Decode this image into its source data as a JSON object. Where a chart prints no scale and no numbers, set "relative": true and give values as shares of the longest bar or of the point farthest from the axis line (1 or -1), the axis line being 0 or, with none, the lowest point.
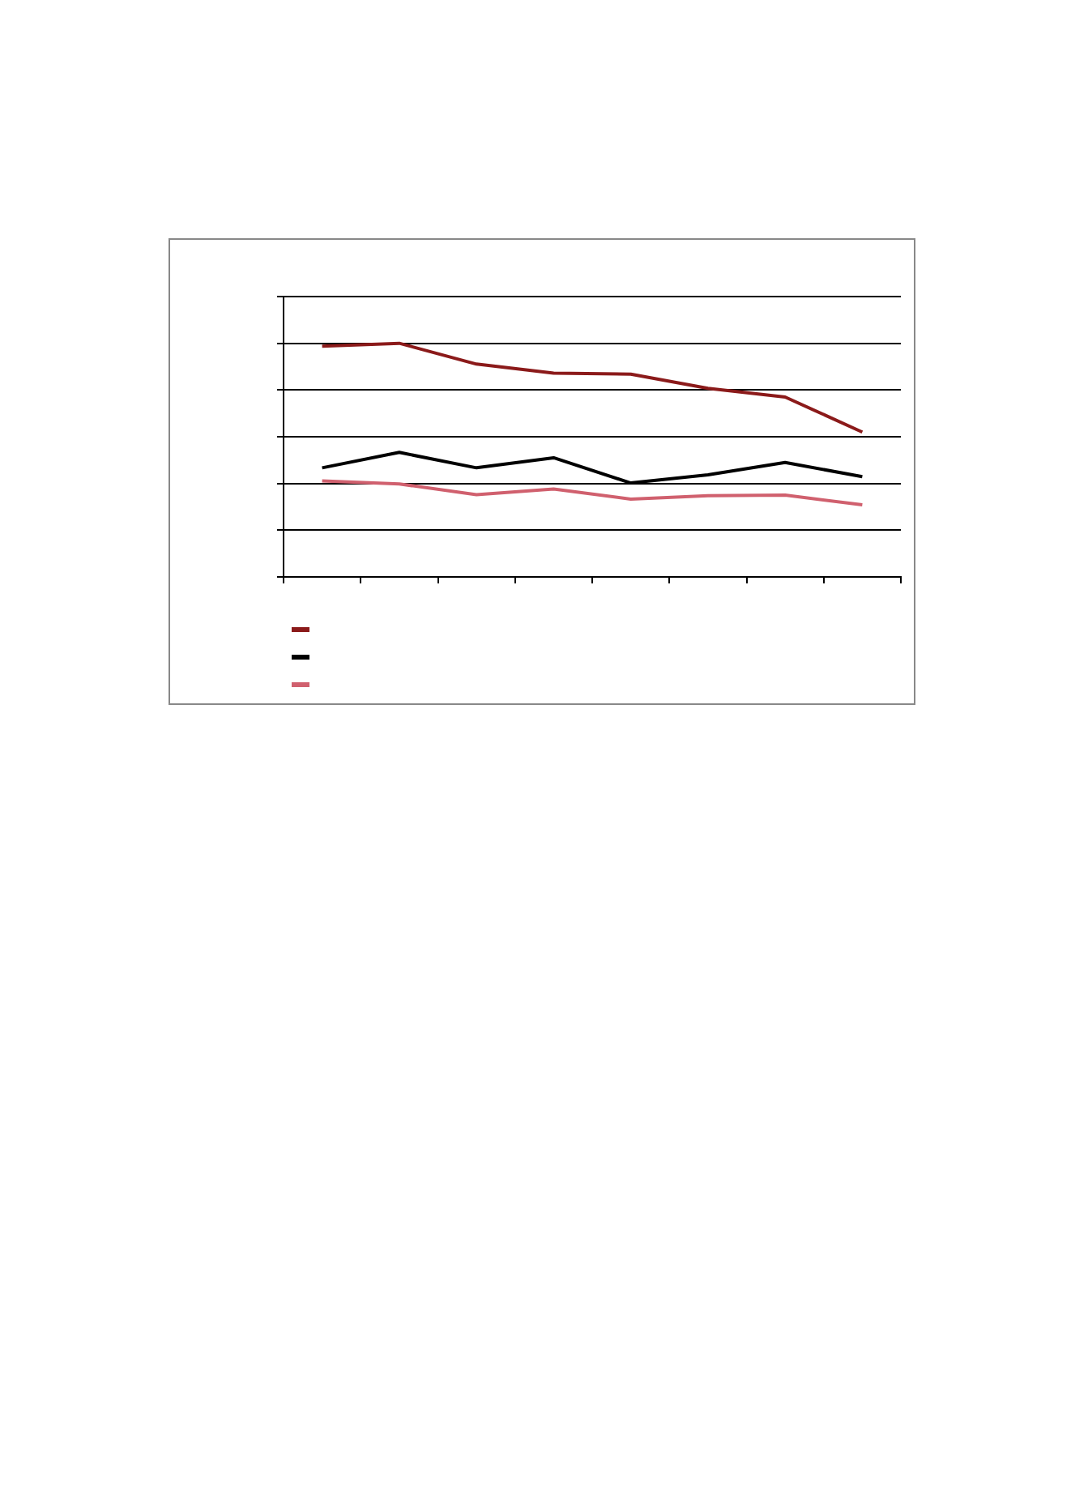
{
  "chart_data": {
    "type": "line",
    "relative": true,
    "categories": [
      null,
      null,
      null,
      null,
      null,
      null,
      null,
      null
    ],
    "series": [
      {
        "color": "#8b1a1a",
        "values": [
          0.988,
          1,
          0.911,
          0.872,
          0.868,
          0.807,
          0.77,
          0.62
        ]
      },
      {
        "color": "#000000",
        "values": [
          0.467,
          0.533,
          0.467,
          0.51,
          0.402,
          0.437,
          0.49,
          0.429
        ]
      },
      {
        "color": "#d0606e",
        "values": [
          0.411,
          0.398,
          0.352,
          0.376,
          0.333,
          0.348,
          0.35,
          0.309
        ]
      }
    ],
    "grid": "y",
    "marker": "none",
    "line_style": "solid"
  }
}
